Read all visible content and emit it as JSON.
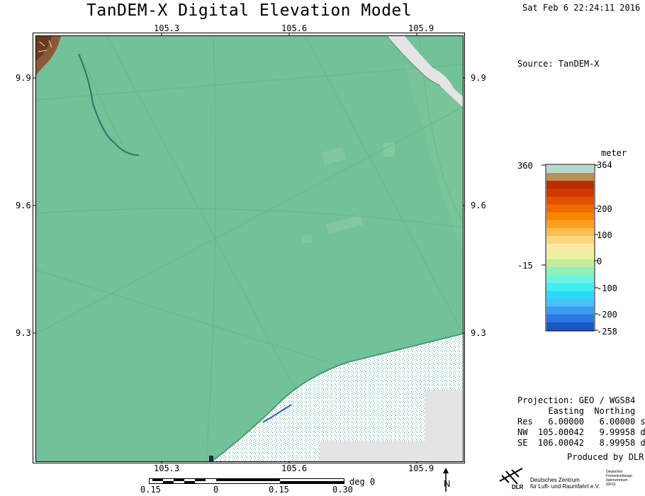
{
  "title": "TanDEM-X Digital Elevation Model",
  "datetime": "Sat Feb  6 22:24:11 2016",
  "source": "Source: TanDEM-X",
  "x_ticks": [
    "105.3",
    "105.6",
    "105.9"
  ],
  "y_ticks": [
    "9.9",
    "9.6",
    "9.3"
  ],
  "colorbar": {
    "unit": "meter",
    "left_labels": [
      "360",
      "-15"
    ],
    "right_labels": [
      "364",
      "200",
      "100",
      "0",
      "-100",
      "-200",
      "-258"
    ],
    "colors": [
      "#b8d8d0",
      "#b8905a",
      "#b82c00",
      "#d03800",
      "#e05000",
      "#ec6a00",
      "#f58500",
      "#f9a020",
      "#fbbc50",
      "#fdd680",
      "#fde8a8",
      "#e8f4a0",
      "#c0ec9c",
      "#8ef0b8",
      "#6cf4e0",
      "#40f0f0",
      "#2cd8f8",
      "#48c0f8",
      "#3c9cf0",
      "#2c78e0",
      "#1c58c8"
    ]
  },
  "projection": {
    "line1": "Projection: GEO / WGS84",
    "header": "      Easting  Northing",
    "res": "Res   6.00000   6.00000 s",
    "nw": "NW  105.00042   9.99958 d",
    "se": "SE  106.00042   8.99958 d"
  },
  "produced_by": "Produced by DLR",
  "scale_bar": {
    "unit": "deg 0",
    "labels": [
      "0.15",
      "0",
      "0.15",
      "0.30"
    ]
  },
  "north_arrow": "N",
  "logo": {
    "mark": "DLR",
    "line1": "Deutsches Zentrum",
    "line2": "für Luft- und Raumfahrt e.V.",
    "dfd1": "Deutsches",
    "dfd2": "Fernerkundungs-",
    "dfd3": "datenzentrum",
    "dfd4": "(DFD)"
  }
}
